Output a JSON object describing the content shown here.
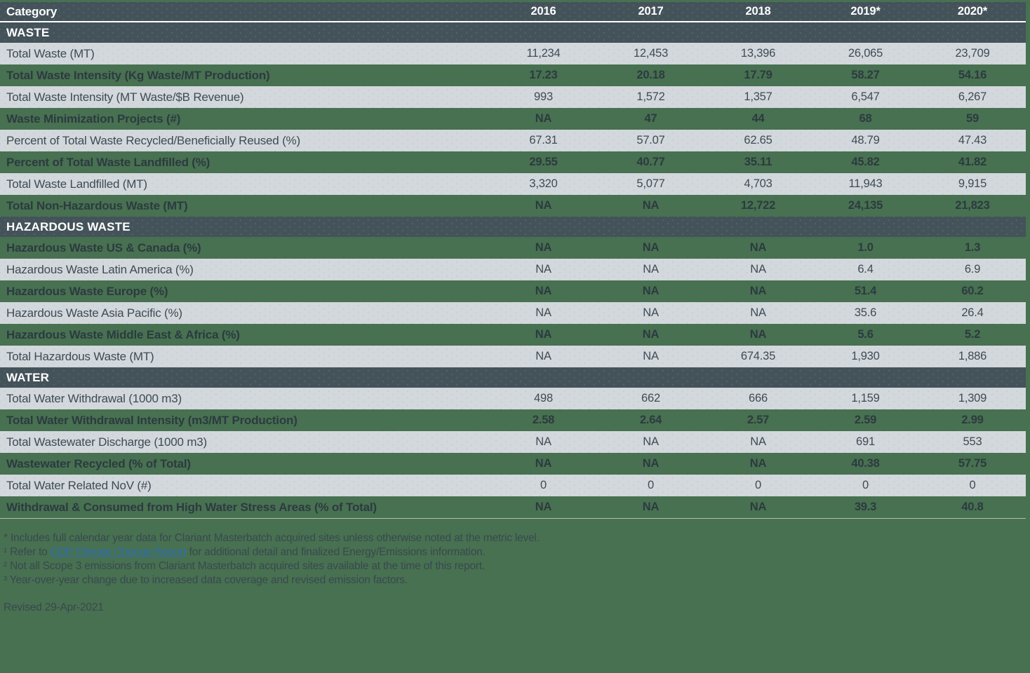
{
  "table": {
    "header": {
      "category_label": "Category",
      "year_columns": [
        "2016",
        "2017",
        "2018",
        "2019*",
        "2020*"
      ]
    },
    "sections": [
      {
        "title": "WASTE",
        "rows": [
          {
            "label": "Total Waste (MT)",
            "values": [
              "11,234",
              "12,453",
              "13,396",
              "26,065",
              "23,709"
            ]
          },
          {
            "label": "Total Waste Intensity (Kg Waste/MT Production)",
            "values": [
              "17.23",
              "20.18",
              "17.79",
              "58.27",
              "54.16"
            ]
          },
          {
            "label": "Total Waste Intensity (MT Waste/$B Revenue)",
            "values": [
              "993",
              "1,572",
              "1,357",
              "6,547",
              "6,267"
            ]
          },
          {
            "label": "Waste Minimization Projects (#)",
            "values": [
              "NA",
              "47",
              "44",
              "68",
              "59"
            ]
          },
          {
            "label": "Percent of Total Waste Recycled/Beneficially Reused (%)",
            "values": [
              "67.31",
              "57.07",
              "62.65",
              "48.79",
              "47.43"
            ]
          },
          {
            "label": "Percent of Total Waste Landfilled (%)",
            "values": [
              "29.55",
              "40.77",
              "35.11",
              "45.82",
              "41.82"
            ]
          },
          {
            "label": "Total Waste Landfilled (MT)",
            "values": [
              "3,320",
              "5,077",
              "4,703",
              "11,943",
              "9,915"
            ]
          },
          {
            "label": "Total Non-Hazardous Waste (MT)",
            "values": [
              "NA",
              "NA",
              "12,722",
              "24,135",
              "21,823"
            ]
          }
        ]
      },
      {
        "title": "HAZARDOUS WASTE",
        "rows": [
          {
            "label": "Hazardous Waste US & Canada (%)",
            "values": [
              "NA",
              "NA",
              "NA",
              "1.0",
              "1.3"
            ]
          },
          {
            "label": "Hazardous Waste Latin America (%)",
            "values": [
              "NA",
              "NA",
              "NA",
              "6.4",
              "6.9"
            ]
          },
          {
            "label": "Hazardous Waste Europe (%)",
            "values": [
              "NA",
              "NA",
              "NA",
              "51.4",
              "60.2"
            ]
          },
          {
            "label": "Hazardous Waste Asia Pacific (%)",
            "values": [
              "NA",
              "NA",
              "NA",
              "35.6",
              "26.4"
            ]
          },
          {
            "label": "Hazardous Waste Middle East & Africa (%)",
            "values": [
              "NA",
              "NA",
              "NA",
              "5.6",
              "5.2"
            ]
          },
          {
            "label": "Total Hazardous Waste (MT)",
            "values": [
              "NA",
              "NA",
              "674.35",
              "1,930",
              "1,886"
            ]
          }
        ]
      },
      {
        "title": "WATER",
        "rows": [
          {
            "label": "Total Water Withdrawal (1000 m3)",
            "values": [
              "498",
              "662",
              "666",
              "1,159",
              "1,309"
            ]
          },
          {
            "label": "Total Water Withdrawal Intensity (m3/MT Production)",
            "values": [
              "2.58",
              "2.64",
              "2.57",
              "2.59",
              "2.99"
            ]
          },
          {
            "label": "Total Wastewater Discharge (1000 m3)",
            "values": [
              "NA",
              "NA",
              "NA",
              "691",
              "553"
            ]
          },
          {
            "label": "Wastewater Recycled (% of Total)",
            "values": [
              "NA",
              "NA",
              "NA",
              "40.38",
              "57.75"
            ]
          },
          {
            "label": "Total Water Related NoV (#)",
            "values": [
              "0",
              "0",
              "0",
              "0",
              "0"
            ]
          },
          {
            "label": "Withdrawal & Consumed from High Water Stress Areas (% of Total)",
            "values": [
              "NA",
              "NA",
              "NA",
              "39.3",
              "40.8"
            ]
          }
        ]
      }
    ]
  },
  "footnotes": [
    {
      "prefix": "* Includes full calendar year data for Clariant Masterbatch acquired sites unless otherwise noted at the metric level.",
      "link": "",
      "suffix": ""
    },
    {
      "prefix": "¹ Refer to ",
      "link": "CDP Climate Change Report",
      "suffix": " for additional detail and finalized Energy/Emissions information."
    },
    {
      "prefix": "² Not all Scope 3 emissions from Clariant Masterbatch acquired sites available at the time of this report.",
      "link": "",
      "suffix": ""
    },
    {
      "prefix": "³ Year-over-year change due to increased data coverage and revised emission factors.",
      "link": "",
      "suffix": ""
    }
  ],
  "revised_label": "Revised 29-Apr-2021",
  "colors": {
    "page_background": "#477150",
    "header_dark": "#44525a",
    "row_light": "#d3d8dd",
    "text_dark": "#3f4b53",
    "text_green_row": "#2d3a41",
    "header_text": "#ffffff",
    "link_blue": "#2e6db6"
  }
}
